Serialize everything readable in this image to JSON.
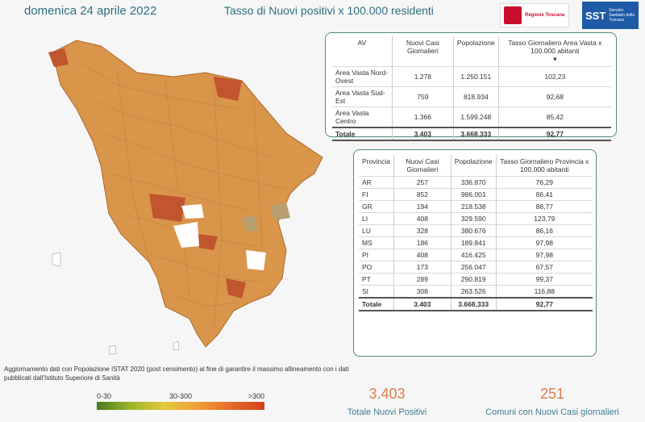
{
  "header": {
    "date": "domenica 24 aprile 2022",
    "title": "Tasso di Nuovi positivi x 100.000 residenti",
    "logo_rt_text": "Regione Toscana",
    "logo_sst_main": "SST",
    "logo_sst_sub": "Servizio Sanitario della Toscana"
  },
  "av_table": {
    "headers": [
      "AV",
      "Nuovi Casi Giornalieri",
      "Popolazione",
      "Tasso Giornaliero Area Vasta x 100.000 abitanti"
    ],
    "rows": [
      [
        "Area Vasta Nord-Ovest",
        "1.278",
        "1.250.151",
        "102,23"
      ],
      [
        "Area Vasta Sud-Est",
        "759",
        "818.934",
        "92,68"
      ],
      [
        "Area Vasta Centro",
        "1.366",
        "1.599.248",
        "85,42"
      ]
    ],
    "total": [
      "Totale",
      "3.403",
      "3.668.333",
      "92,77"
    ]
  },
  "prov_table": {
    "headers": [
      "Provincia",
      "Nuovi Casi Giornalieri",
      "Popolazione",
      "Tasso Giornaliero Provincia x 100.000 abitanti"
    ],
    "rows": [
      [
        "AR",
        "257",
        "336.870",
        "76,29"
      ],
      [
        "FI",
        "852",
        "986.001",
        "86,41"
      ],
      [
        "GR",
        "194",
        "218.538",
        "88,77"
      ],
      [
        "LI",
        "408",
        "329.590",
        "123,79"
      ],
      [
        "LU",
        "328",
        "380.676",
        "86,16"
      ],
      [
        "MS",
        "186",
        "189.841",
        "97,98"
      ],
      [
        "PI",
        "408",
        "416.425",
        "97,98"
      ],
      [
        "PO",
        "173",
        "256.047",
        "67,57"
      ],
      [
        "PT",
        "289",
        "290.819",
        "99,37"
      ],
      [
        "SI",
        "308",
        "263.526",
        "116,88"
      ]
    ],
    "total": [
      "Totale",
      "3.403",
      "3.668.333",
      "92,77"
    ]
  },
  "footnote": "Aggiornamento dati con Popolazione ISTAT 2020 (post censimento) al fine di garantire il massimo allineamento con i dati pubblicati dall'Istituto Superiore di Sanità",
  "legend": {
    "low": "0-30",
    "mid": "30-300",
    "high": ">300"
  },
  "kpis": [
    {
      "value": "3.403",
      "label": "Totale Nuovi Positivi"
    },
    {
      "value": "251",
      "label": "Comuni con Nuovi Casi giornalieri"
    }
  ],
  "colors": {
    "accent": "#2e6f80",
    "kpi": "#e07a50",
    "map_base": "#d9954a",
    "map_dark": "#c0552e"
  }
}
